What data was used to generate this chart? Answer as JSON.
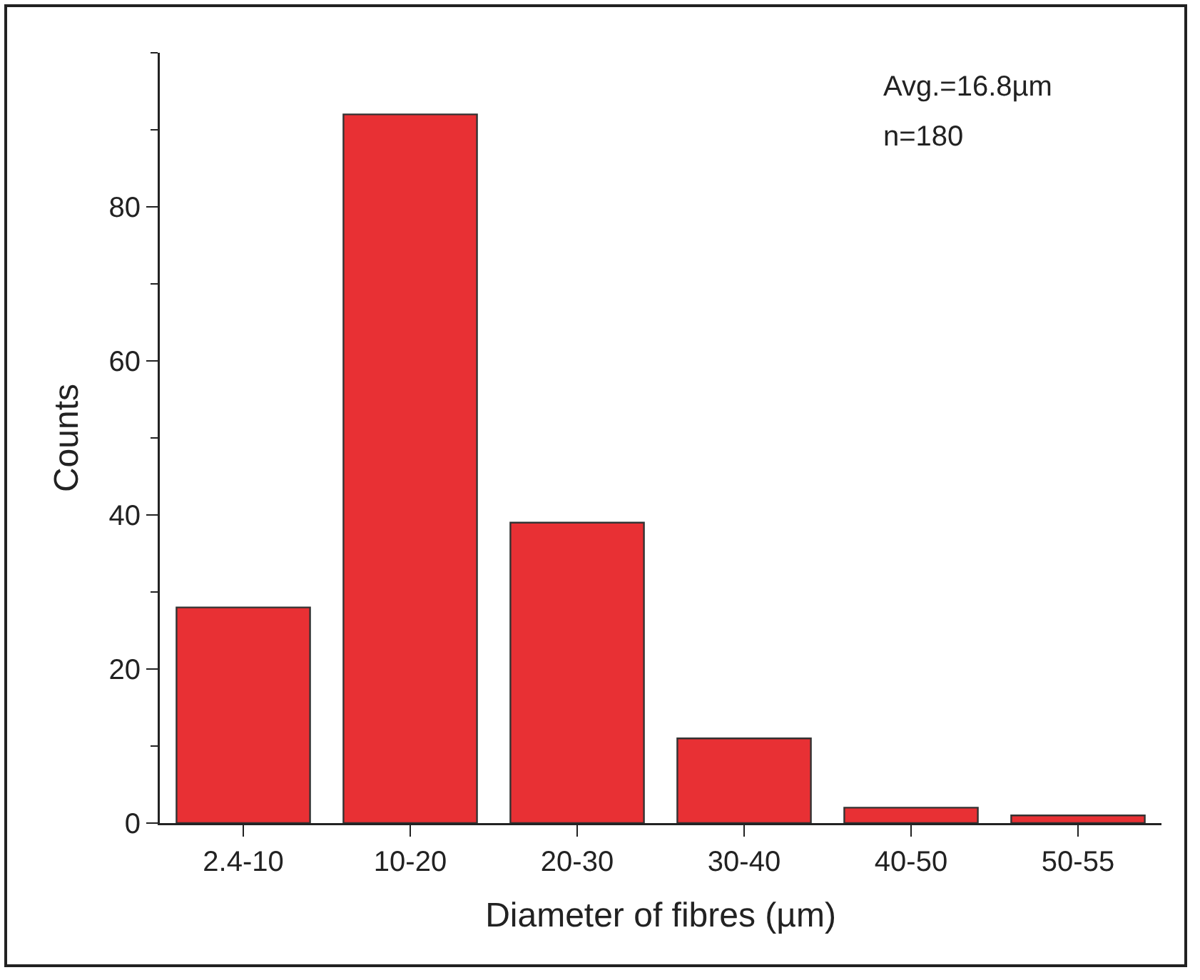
{
  "chart_data": {
    "type": "bar",
    "xlabel": "Diameter of fibres (µm)",
    "ylabel": "Counts",
    "categories": [
      "2.4-10",
      "10-20",
      "20-30",
      "30-40",
      "40-50",
      "50-55"
    ],
    "values": [
      28,
      92,
      39,
      11,
      2,
      1
    ],
    "color": "#e83034",
    "ylim": [
      0,
      100
    ],
    "yticks": [
      0,
      20,
      40,
      60,
      80
    ],
    "grid": false,
    "annotations": [
      "Avg.=16.8µm",
      "n=180"
    ]
  }
}
